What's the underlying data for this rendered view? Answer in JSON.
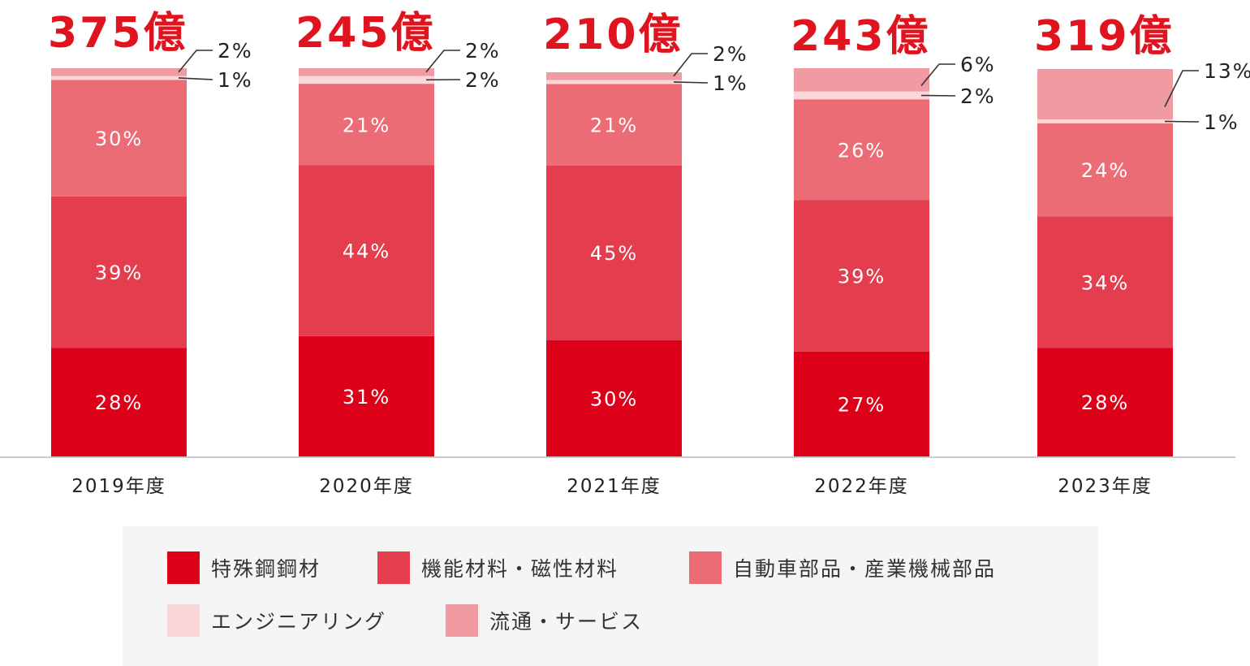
{
  "colors": {
    "special_steel": "#dc0018",
    "functional_materials": "#e43d4d",
    "auto_parts": "#ec6c76",
    "engineering": "#fad7da",
    "distribution": "#f09aa1",
    "total_label": "#e0141e",
    "text_white": "#ffffff",
    "text_dark": "#222222",
    "axis": "#cccccc"
  },
  "chart_data": {
    "type": "bar",
    "stacked": true,
    "normalized": true,
    "categories": [
      "2019年度",
      "2020年度",
      "2021年度",
      "2022年度",
      "2023年度"
    ],
    "totals": [
      "375億",
      "245億",
      "210億",
      "243億",
      "319億"
    ],
    "total_values": [
      375,
      245,
      210,
      243,
      319
    ],
    "series": [
      {
        "key": "special_steel",
        "name": "特殊鋼鋼材",
        "values": [
          28,
          31,
          30,
          27,
          28
        ],
        "labels": [
          "28%",
          "31%",
          "30%",
          "27%",
          "28%"
        ]
      },
      {
        "key": "functional_materials",
        "name": "機能材料・磁性材料",
        "values": [
          39,
          44,
          45,
          39,
          34
        ],
        "labels": [
          "39%",
          "44%",
          "45%",
          "39%",
          "34%"
        ]
      },
      {
        "key": "auto_parts",
        "name": "自動車部品・産業機械部品",
        "values": [
          30,
          21,
          21,
          26,
          24
        ],
        "labels": [
          "30%",
          "21%",
          "21%",
          "26%",
          "24%"
        ]
      },
      {
        "key": "engineering",
        "name": "エンジニアリング",
        "values": [
          1,
          2,
          1,
          2,
          1
        ],
        "labels": [
          "1%",
          "2%",
          "1%",
          "2%",
          "1%"
        ]
      },
      {
        "key": "distribution",
        "name": "流通・サービス",
        "values": [
          2,
          2,
          2,
          6,
          13
        ],
        "labels": [
          "2%",
          "2%",
          "2%",
          "6%",
          "13%"
        ]
      }
    ],
    "legend_position": "bottom",
    "grid": false
  }
}
